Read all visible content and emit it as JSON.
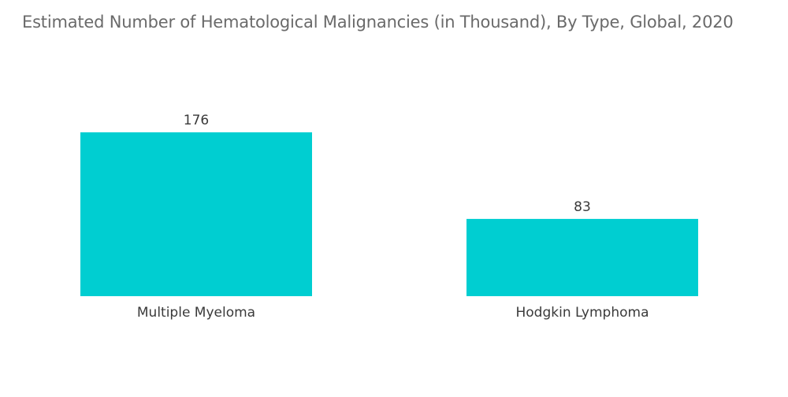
{
  "chart_data": {
    "type": "bar",
    "title": "Estimated Number of Hematological Malignancies (in Thousand), By Type, Global, 2020",
    "xlabel": "",
    "ylabel": "",
    "categories": [
      "Multiple Myeloma",
      "Hodgkin Lymphoma"
    ],
    "values": [
      176,
      83
    ],
    "data_labels": [
      "176",
      "83"
    ],
    "ylim": [
      0,
      176
    ],
    "grid": false,
    "legend": "none",
    "bar_color": "#00ced1"
  }
}
